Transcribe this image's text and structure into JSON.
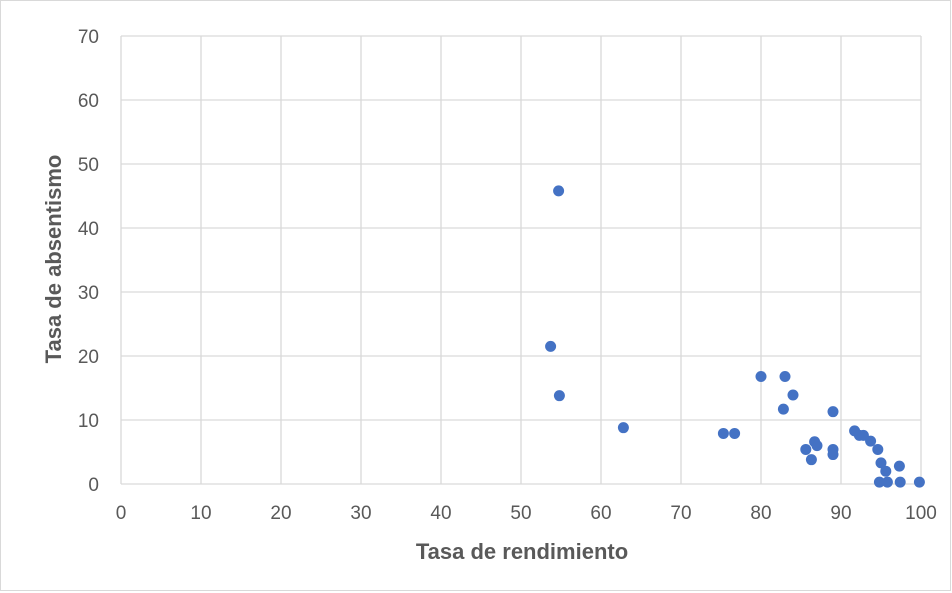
{
  "chart_data": {
    "type": "scatter",
    "title": "",
    "xlabel": "Tasa de rendimiento",
    "ylabel": "Tasa de absentismo",
    "xlim": [
      0,
      100
    ],
    "ylim": [
      0,
      70
    ],
    "x_ticks": [
      0,
      10,
      20,
      30,
      40,
      50,
      60,
      70,
      80,
      90,
      100
    ],
    "y_ticks": [
      0,
      10,
      20,
      30,
      40,
      50,
      60,
      70
    ],
    "x_tick_labels": [
      "0",
      "10",
      "20",
      "30",
      "40",
      "50",
      "60",
      "70",
      "80",
      "90",
      "100"
    ],
    "y_tick_labels": [
      "0",
      "10",
      "20",
      "30",
      "40",
      "50",
      "60",
      "70"
    ],
    "grid": true,
    "legend": "none",
    "marker_color": "#4472c4",
    "gridline_color": "#d9d9d9",
    "series": [
      {
        "points": [
          [
            54.7,
            45.8
          ],
          [
            53.7,
            21.5
          ],
          [
            54.8,
            13.8
          ],
          [
            62.8,
            8.8
          ],
          [
            75.3,
            7.9
          ],
          [
            76.7,
            7.9
          ],
          [
            80.0,
            16.8
          ],
          [
            83.0,
            16.8
          ],
          [
            84.0,
            13.9
          ],
          [
            82.8,
            11.7
          ],
          [
            89.0,
            11.3
          ],
          [
            85.6,
            5.4
          ],
          [
            86.3,
            3.8
          ],
          [
            86.7,
            6.6
          ],
          [
            87.0,
            6.0
          ],
          [
            89.0,
            5.4
          ],
          [
            89.0,
            4.6
          ],
          [
            91.7,
            8.3
          ],
          [
            92.3,
            7.6
          ],
          [
            92.8,
            7.6
          ],
          [
            93.7,
            6.7
          ],
          [
            94.6,
            5.4
          ],
          [
            94.8,
            0.3
          ],
          [
            95.0,
            3.3
          ],
          [
            95.6,
            2.0
          ],
          [
            95.8,
            0.3
          ],
          [
            97.3,
            2.8
          ],
          [
            97.4,
            0.3
          ],
          [
            99.8,
            0.3
          ]
        ]
      }
    ]
  }
}
